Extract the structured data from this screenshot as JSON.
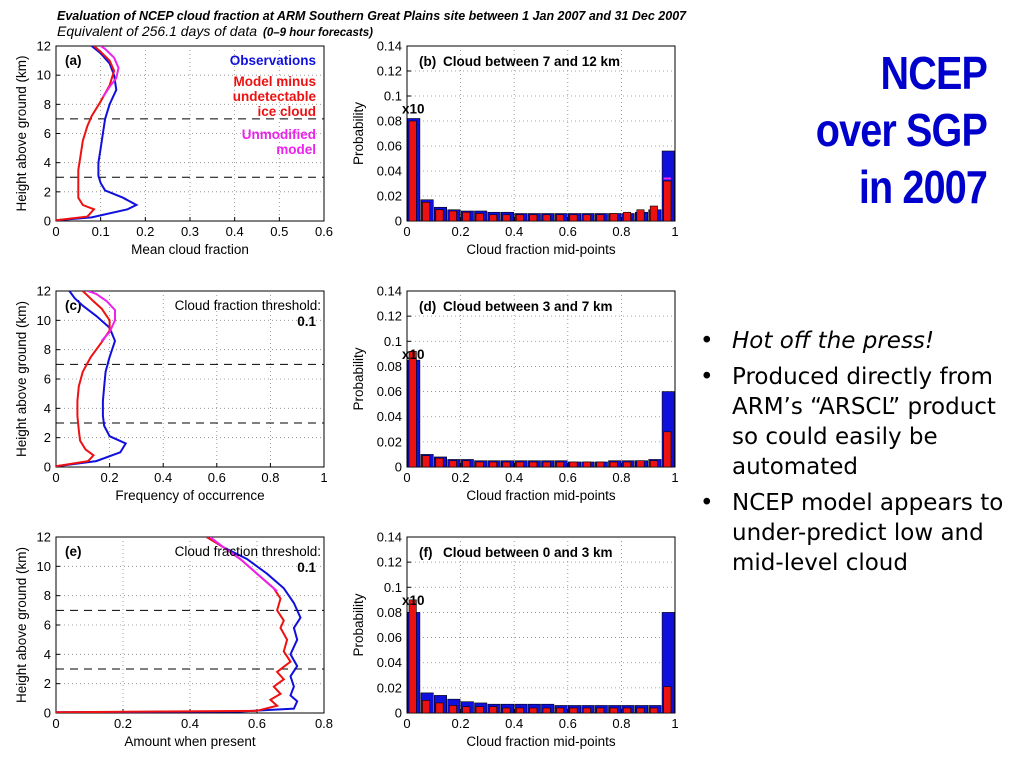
{
  "header": {
    "line1": "Evaluation of NCEP cloud fraction at ARM Southern Great Plains site between 1 Jan 2007 and 31 Dec 2007",
    "line2": "Equivalent of 256.1 days of data",
    "line2_note": "(0–9 hour forecasts)"
  },
  "slide_title": {
    "line1": "NCEP",
    "line2": "over SGP",
    "line3": "in 2007"
  },
  "bullets": [
    "Hot off the press!",
    "Produced directly from ARM’s “ARSCL” product so could easily be automated",
    "NCEP model appears to under-predict low and mid-level cloud"
  ],
  "colors": {
    "observations": "#1010dd",
    "model": "#ee1111",
    "unmodified": "#ee22ee",
    "title": "#0000cc"
  },
  "chart_data": [
    {
      "panel": "(a)",
      "type": "line",
      "xlabel": "Mean cloud fraction",
      "ylabel": "Height above ground (km)",
      "xlim": [
        0,
        0.6
      ],
      "ylim": [
        0,
        12
      ],
      "xticks": [
        "0",
        "0.1",
        "0.2",
        "0.3",
        "0.4",
        "0.5",
        "0.6"
      ],
      "yticks": [
        "0",
        "2",
        "4",
        "6",
        "8",
        "10",
        "12"
      ],
      "grid": true,
      "dashed_y": [
        3,
        7
      ],
      "legend_placement": "top-right",
      "legend": [
        "Observations",
        "Model minus undetectable ice cloud",
        "Unmodified model"
      ],
      "series": [
        {
          "name": "Observations",
          "color": "#1010dd",
          "points": [
            [
              0,
              0.05
            ],
            [
              0.08,
              0.25
            ],
            [
              0.16,
              0.8
            ],
            [
              0.18,
              1.1
            ],
            [
              0.15,
              1.6
            ],
            [
              0.11,
              2.1
            ],
            [
              0.1,
              2.6
            ],
            [
              0.095,
              3.1
            ],
            [
              0.095,
              4
            ],
            [
              0.1,
              5
            ],
            [
              0.105,
              6
            ],
            [
              0.11,
              7
            ],
            [
              0.12,
              8
            ],
            [
              0.135,
              9
            ],
            [
              0.13,
              10
            ],
            [
              0.12,
              10.8
            ],
            [
              0.1,
              11.5
            ],
            [
              0.08,
              12
            ]
          ]
        },
        {
          "name": "Model minus undetectable ice cloud",
          "color": "#ee1111",
          "points": [
            [
              0,
              0.05
            ],
            [
              0.07,
              0.3
            ],
            [
              0.085,
              0.8
            ],
            [
              0.06,
              1.1
            ],
            [
              0.05,
              1.6
            ],
            [
              0.05,
              2.5
            ],
            [
              0.05,
              3.5
            ],
            [
              0.055,
              4.5
            ],
            [
              0.06,
              5.5
            ],
            [
              0.07,
              6.5
            ],
            [
              0.08,
              7.2
            ],
            [
              0.1,
              8.2
            ],
            [
              0.12,
              9.3
            ],
            [
              0.13,
              10.3
            ],
            [
              0.12,
              11
            ],
            [
              0.1,
              11.6
            ],
            [
              0.085,
              12
            ]
          ]
        },
        {
          "name": "Unmodified model",
          "color": "#ee22ee",
          "points": [
            [
              0.105,
              8.5
            ],
            [
              0.12,
              9.2
            ],
            [
              0.135,
              9.8
            ],
            [
              0.14,
              10.5
            ],
            [
              0.13,
              11.2
            ],
            [
              0.11,
              11.8
            ],
            [
              0.1,
              12
            ]
          ]
        }
      ]
    },
    {
      "panel": "(b)",
      "type": "bar",
      "title": "Cloud between 7 and 12 km",
      "xlabel": "Cloud fraction mid-points",
      "ylabel": "Probability",
      "xlim": [
        0,
        1
      ],
      "ylim": [
        0,
        0.14
      ],
      "xticks": [
        "0",
        "0.2",
        "0.4",
        "0.6",
        "0.8",
        "1"
      ],
      "yticks": [
        "0",
        "0.02",
        "0.04",
        "0.06",
        "0.08",
        "0.1",
        "0.12",
        "0.14"
      ],
      "annotation": "x10",
      "grid": true,
      "categories": [
        0.025,
        0.075,
        0.125,
        0.175,
        0.225,
        0.275,
        0.325,
        0.375,
        0.425,
        0.475,
        0.525,
        0.575,
        0.625,
        0.675,
        0.725,
        0.775,
        0.825,
        0.875,
        0.925,
        0.975
      ],
      "series": [
        {
          "name": "Observations",
          "color": "#1010dd",
          "values": [
            0.082,
            0.017,
            0.011,
            0.009,
            0.008,
            0.008,
            0.007,
            0.007,
            0.006,
            0.006,
            0.006,
            0.006,
            0.006,
            0.006,
            0.006,
            0.006,
            0.006,
            0.007,
            0.009,
            0.056
          ]
        },
        {
          "name": "Model",
          "color": "#ee1111",
          "values": [
            0.08,
            0.015,
            0.009,
            0.008,
            0.007,
            0.006,
            0.005,
            0.005,
            0.005,
            0.005,
            0.005,
            0.005,
            0.005,
            0.005,
            0.005,
            0.006,
            0.007,
            0.009,
            0.012,
            0.032
          ]
        },
        {
          "name": "Unmodified model",
          "color": "#ee22ee",
          "marker_value": 0.034
        }
      ]
    },
    {
      "panel": "(c)",
      "type": "line",
      "xlabel": "Frequency of occurrence",
      "ylabel": "Height above ground (km)",
      "xlim": [
        0,
        1
      ],
      "ylim": [
        0,
        12
      ],
      "xticks": [
        "0",
        "0.2",
        "0.4",
        "0.6",
        "0.8",
        "1"
      ],
      "yticks": [
        "0",
        "2",
        "4",
        "6",
        "8",
        "10",
        "12"
      ],
      "grid": true,
      "dashed_y": [
        3,
        7
      ],
      "threshold_label": "Cloud fraction threshold:",
      "threshold_value": "0.1",
      "series": [
        {
          "name": "Observations",
          "color": "#1010dd",
          "points": [
            [
              0,
              0.05
            ],
            [
              0.15,
              0.4
            ],
            [
              0.24,
              1
            ],
            [
              0.26,
              1.6
            ],
            [
              0.2,
              2.1
            ],
            [
              0.18,
              2.8
            ],
            [
              0.175,
              3.5
            ],
            [
              0.175,
              4.5
            ],
            [
              0.18,
              5.5
            ],
            [
              0.185,
              6.5
            ],
            [
              0.2,
              7.5
            ],
            [
              0.22,
              8.6
            ],
            [
              0.2,
              9.5
            ],
            [
              0.15,
              10.3
            ],
            [
              0.1,
              11
            ],
            [
              0.07,
              11.5
            ],
            [
              0.05,
              12
            ]
          ]
        },
        {
          "name": "Model minus undetectable ice cloud",
          "color": "#ee1111",
          "points": [
            [
              0,
              0.05
            ],
            [
              0.12,
              0.4
            ],
            [
              0.14,
              0.8
            ],
            [
              0.11,
              1.2
            ],
            [
              0.09,
              1.8
            ],
            [
              0.085,
              2.5
            ],
            [
              0.08,
              3.5
            ],
            [
              0.08,
              4.5
            ],
            [
              0.085,
              5.5
            ],
            [
              0.1,
              6.5
            ],
            [
              0.13,
              7.5
            ],
            [
              0.17,
              8.5
            ],
            [
              0.2,
              9.3
            ],
            [
              0.2,
              10
            ],
            [
              0.17,
              10.8
            ],
            [
              0.14,
              11.3
            ],
            [
              0.1,
              12
            ]
          ]
        },
        {
          "name": "Unmodified model",
          "color": "#ee22ee",
          "points": [
            [
              0.17,
              8.6
            ],
            [
              0.2,
              9.2
            ],
            [
              0.22,
              10
            ],
            [
              0.22,
              10.7
            ],
            [
              0.19,
              11.3
            ],
            [
              0.15,
              11.8
            ],
            [
              0.12,
              12
            ]
          ]
        }
      ]
    },
    {
      "panel": "(d)",
      "type": "bar",
      "title": "Cloud between 3 and 7 km",
      "xlabel": "Cloud fraction mid-points",
      "ylabel": "Probability",
      "xlim": [
        0,
        1
      ],
      "ylim": [
        0,
        0.14
      ],
      "xticks": [
        "0",
        "0.2",
        "0.4",
        "0.6",
        "0.8",
        "1"
      ],
      "yticks": [
        "0",
        "0.02",
        "0.04",
        "0.06",
        "0.08",
        "0.1",
        "0.12",
        "0.14"
      ],
      "annotation": "x10",
      "grid": true,
      "categories": [
        0.025,
        0.075,
        0.125,
        0.175,
        0.225,
        0.275,
        0.325,
        0.375,
        0.425,
        0.475,
        0.525,
        0.575,
        0.625,
        0.675,
        0.725,
        0.775,
        0.825,
        0.875,
        0.925,
        0.975
      ],
      "series": [
        {
          "name": "Observations",
          "color": "#1010dd",
          "values": [
            0.085,
            0.01,
            0.008,
            0.006,
            0.006,
            0.005,
            0.005,
            0.005,
            0.005,
            0.005,
            0.005,
            0.005,
            0.004,
            0.004,
            0.004,
            0.005,
            0.005,
            0.005,
            0.006,
            0.06
          ]
        },
        {
          "name": "Model",
          "color": "#ee1111",
          "values": [
            0.092,
            0.009,
            0.007,
            0.005,
            0.005,
            0.004,
            0.004,
            0.004,
            0.004,
            0.004,
            0.004,
            0.004,
            0.004,
            0.004,
            0.004,
            0.004,
            0.004,
            0.005,
            0.005,
            0.028
          ]
        }
      ]
    },
    {
      "panel": "(e)",
      "type": "line",
      "xlabel": "Amount when present",
      "ylabel": "Height above ground (km)",
      "xlim": [
        0,
        0.8
      ],
      "ylim": [
        0,
        12
      ],
      "xticks": [
        "0",
        "0.2",
        "0.4",
        "0.6",
        "0.8"
      ],
      "yticks": [
        "0",
        "2",
        "4",
        "6",
        "8",
        "10",
        "12"
      ],
      "grid": true,
      "dashed_y": [
        3,
        7
      ],
      "threshold_label": "Cloud fraction threshold:",
      "threshold_value": "0.1",
      "series": [
        {
          "name": "Observations",
          "color": "#1010dd",
          "points": [
            [
              0,
              0.05
            ],
            [
              0.55,
              0.1
            ],
            [
              0.71,
              0.3
            ],
            [
              0.72,
              0.8
            ],
            [
              0.7,
              1.2
            ],
            [
              0.71,
              1.8
            ],
            [
              0.7,
              2.5
            ],
            [
              0.72,
              3.2
            ],
            [
              0.7,
              4
            ],
            [
              0.72,
              5
            ],
            [
              0.71,
              5.8
            ],
            [
              0.73,
              6.5
            ],
            [
              0.71,
              7.5
            ],
            [
              0.68,
              8.5
            ],
            [
              0.63,
              9.5
            ],
            [
              0.57,
              10.5
            ],
            [
              0.5,
              11.3
            ],
            [
              0.45,
              12
            ]
          ]
        },
        {
          "name": "Model minus undetectable ice cloud",
          "color": "#ee1111",
          "points": [
            [
              0,
              0.05
            ],
            [
              0.6,
              0.15
            ],
            [
              0.66,
              0.5
            ],
            [
              0.64,
              0.9
            ],
            [
              0.67,
              1.3
            ],
            [
              0.65,
              1.8
            ],
            [
              0.68,
              2.3
            ],
            [
              0.66,
              2.8
            ],
            [
              0.7,
              3.5
            ],
            [
              0.68,
              4.2
            ],
            [
              0.69,
              5
            ],
            [
              0.67,
              5.8
            ],
            [
              0.68,
              6.3
            ],
            [
              0.66,
              7
            ],
            [
              0.67,
              7.8
            ],
            [
              0.65,
              8.5
            ],
            [
              0.6,
              9.5
            ],
            [
              0.55,
              10.5
            ],
            [
              0.5,
              11.3
            ],
            [
              0.45,
              12
            ]
          ]
        },
        {
          "name": "Unmodified model",
          "color": "#ee22ee",
          "points": [
            [
              0.66,
              8.3
            ],
            [
              0.6,
              9.5
            ],
            [
              0.55,
              10.5
            ],
            [
              0.5,
              11.3
            ],
            [
              0.46,
              12
            ]
          ]
        }
      ]
    },
    {
      "panel": "(f)",
      "type": "bar",
      "title": "Cloud between 0 and 3 km",
      "xlabel": "Cloud fraction mid-points",
      "ylabel": "Probability",
      "xlim": [
        0,
        1
      ],
      "ylim": [
        0,
        0.14
      ],
      "xticks": [
        "0",
        "0.2",
        "0.4",
        "0.6",
        "0.8",
        "1"
      ],
      "yticks": [
        "0",
        "0.02",
        "0.04",
        "0.06",
        "0.08",
        "0.1",
        "0.12",
        "0.14"
      ],
      "annotation": "x10",
      "grid": true,
      "categories": [
        0.025,
        0.075,
        0.125,
        0.175,
        0.225,
        0.275,
        0.325,
        0.375,
        0.425,
        0.475,
        0.525,
        0.575,
        0.625,
        0.675,
        0.725,
        0.775,
        0.825,
        0.875,
        0.925,
        0.975
      ],
      "series": [
        {
          "name": "Observations",
          "color": "#1010dd",
          "values": [
            0.08,
            0.016,
            0.014,
            0.011,
            0.009,
            0.008,
            0.007,
            0.007,
            0.007,
            0.007,
            0.007,
            0.006,
            0.006,
            0.006,
            0.006,
            0.006,
            0.006,
            0.006,
            0.006,
            0.08
          ]
        },
        {
          "name": "Model",
          "color": "#ee1111",
          "values": [
            0.09,
            0.01,
            0.008,
            0.006,
            0.005,
            0.005,
            0.005,
            0.004,
            0.004,
            0.004,
            0.004,
            0.004,
            0.004,
            0.004,
            0.004,
            0.004,
            0.004,
            0.004,
            0.004,
            0.021
          ]
        }
      ]
    }
  ]
}
